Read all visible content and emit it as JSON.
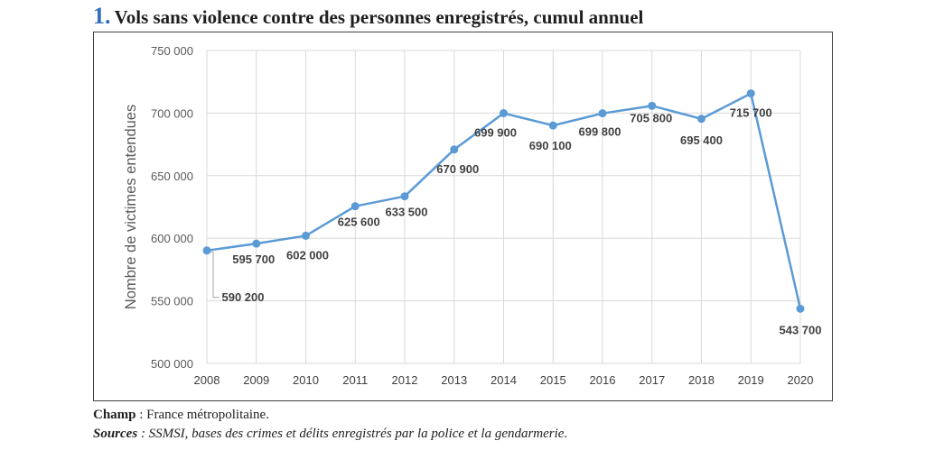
{
  "figure": {
    "number": "1.",
    "title": "Vols sans violence contre des personnes enregistrés, cumul annuel"
  },
  "chart_data": {
    "type": "line",
    "x": [
      "2008",
      "2009",
      "2010",
      "2011",
      "2012",
      "2013",
      "2014",
      "2015",
      "2016",
      "2017",
      "2018",
      "2019",
      "2020"
    ],
    "series": [
      {
        "values": [
          590200,
          595700,
          602000,
          625600,
          633500,
          670900,
          699900,
          690100,
          699800,
          705800,
          695400,
          715700,
          543700
        ]
      }
    ],
    "data_labels": [
      "590 200",
      "595 700",
      "602 000",
      "625 600",
      "633 500",
      "670 900",
      "699 900",
      "690 100",
      "699 800",
      "705 800",
      "695 400",
      "715 700",
      "543 700"
    ],
    "ylabel": "Nombre de victimes entendues",
    "xlabel": "",
    "ylim": [
      500000,
      750000
    ],
    "yticks": [
      500000,
      550000,
      600000,
      650000,
      700000,
      750000
    ],
    "ytick_labels": [
      "500 000",
      "550 000",
      "600 000",
      "650 000",
      "700 000",
      "750 000"
    ],
    "grid": true,
    "line_color": "#5b9bd5"
  },
  "notes": {
    "champ_label": "Champ",
    "champ_text": " : France métropolitaine.",
    "sources_label": "Sources",
    "sources_text": " : SSMSI, bases des crimes et délits enregistrés par la police et la gendarmerie."
  }
}
